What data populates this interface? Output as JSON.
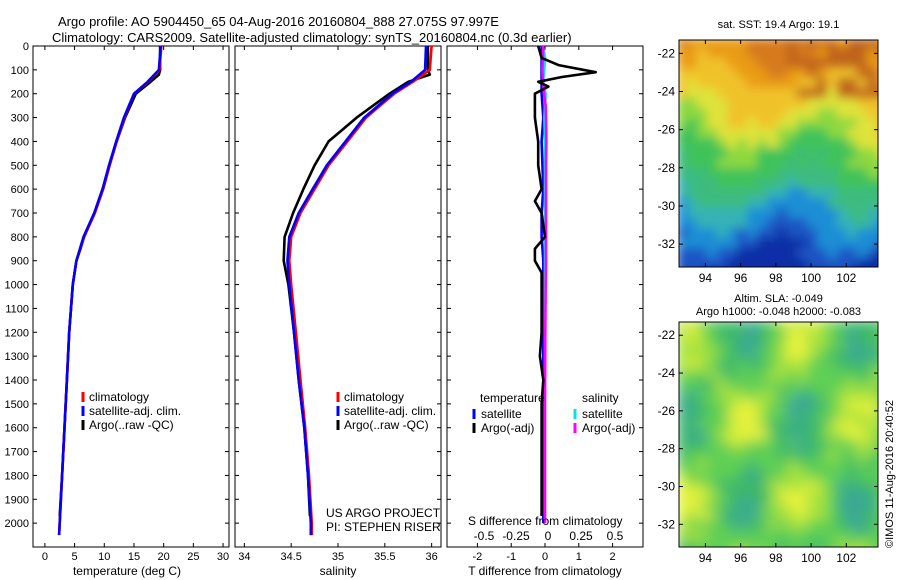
{
  "title_line1": "Argo profile: AO 5904450_65 04-Aug-2016 20160804_888 27.075S 97.997E",
  "title_line2": "Climatology: CARS2009. Satellite-adjusted climatology: synTS_20160804.nc (0.3d earlier)",
  "stamp": "©IMOS 11-Aug-2016 20:40:52",
  "colors": {
    "climatology": "#ff0000",
    "satellite": "#0000ff",
    "argo": "#000000",
    "sal_satellite": "#00e5e5",
    "sal_argo": "#ff00ff"
  },
  "chart_data": [
    {
      "type": "line",
      "id": "temperature",
      "xlabel": "temperature (deg C)",
      "xlim": [
        -2,
        31
      ],
      "xticks": [
        0,
        5,
        10,
        15,
        20,
        25,
        30
      ],
      "ylim": [
        2100,
        0
      ],
      "yticks": [
        0,
        100,
        200,
        300,
        400,
        500,
        600,
        700,
        800,
        900,
        1000,
        1100,
        1200,
        1300,
        1400,
        1500,
        1600,
        1700,
        1800,
        1900,
        2000
      ],
      "legend": [
        "climatology",
        "satellite-adj. clim.",
        "Argo(..raw -QC)"
      ],
      "series": [
        {
          "name": "climatology",
          "depth": [
            0,
            100,
            150,
            200,
            300,
            400,
            500,
            600,
            700,
            800,
            900,
            1000,
            1200,
            1400,
            1600,
            1800,
            2000,
            2050
          ],
          "values": [
            19.6,
            19.3,
            17.4,
            15.0,
            13.4,
            12.1,
            10.9,
            9.8,
            8.4,
            6.6,
            5.3,
            4.7,
            4.1,
            3.7,
            3.3,
            2.9,
            2.5,
            2.4
          ]
        },
        {
          "name": "satellite-adj. clim.",
          "depth": [
            0,
            100,
            150,
            200,
            300,
            400,
            500,
            600,
            700,
            800,
            900,
            1000,
            1200,
            1400,
            1600,
            1800,
            2000,
            2050
          ],
          "values": [
            19.5,
            19.2,
            17.3,
            15.0,
            13.3,
            12.0,
            10.8,
            9.7,
            8.3,
            6.5,
            5.3,
            4.7,
            4.1,
            3.7,
            3.3,
            2.9,
            2.5,
            2.4
          ]
        },
        {
          "name": "Argo(..raw -QC)",
          "depth": [
            0,
            100,
            120,
            150,
            200,
            300,
            400,
            500,
            600,
            700,
            800,
            850,
            900,
            1000,
            1200,
            1400,
            1600,
            1800,
            1970
          ],
          "values": [
            19.4,
            19.4,
            19.2,
            17.8,
            15.3,
            13.5,
            12.1,
            10.9,
            9.8,
            8.4,
            6.6,
            6.0,
            5.3,
            4.7,
            4.1,
            3.7,
            3.3,
            2.9,
            2.5
          ]
        }
      ]
    },
    {
      "type": "line",
      "id": "salinity",
      "xlabel": "salinity",
      "xlim": [
        33.9,
        36.1
      ],
      "xticks": [
        34,
        34.5,
        35,
        35.5,
        36
      ],
      "xticklabels": [
        "34",
        "34.5",
        "35",
        "35.5",
        "36"
      ],
      "ylim": [
        2100,
        0
      ],
      "legend": [
        "climatology",
        "satellite-adj. clim.",
        "Argo(..raw -QC)"
      ],
      "annotation": [
        "US ARGO PROJECT",
        "PI: STEPHEN RISER"
      ],
      "series": [
        {
          "name": "climatology",
          "depth": [
            0,
            100,
            150,
            200,
            250,
            300,
            400,
            500,
            600,
            700,
            800,
            900,
            1000,
            1200,
            1400,
            1600,
            1800,
            2000,
            2050
          ],
          "values": [
            36.0,
            35.98,
            35.8,
            35.6,
            35.45,
            35.3,
            35.1,
            34.9,
            34.75,
            34.6,
            34.5,
            34.48,
            34.5,
            34.55,
            34.6,
            34.65,
            34.69,
            34.72,
            34.72
          ]
        },
        {
          "name": "satellite-adj. clim.",
          "depth": [
            0,
            100,
            150,
            200,
            250,
            300,
            400,
            500,
            600,
            700,
            800,
            900,
            1000,
            1200,
            1400,
            1600,
            1800,
            2000,
            2050
          ],
          "values": [
            35.94,
            35.93,
            35.78,
            35.58,
            35.43,
            35.28,
            35.08,
            34.88,
            34.73,
            34.58,
            34.48,
            34.46,
            34.48,
            34.53,
            34.58,
            34.64,
            34.68,
            34.71,
            34.71
          ]
        },
        {
          "name": "Argo(..raw -QC)",
          "depth": [
            0,
            100,
            120,
            150,
            200,
            300,
            350,
            400,
            500,
            600,
            700,
            800,
            900,
            1000,
            1200,
            1400,
            1600,
            1800,
            1970
          ],
          "values": [
            35.96,
            35.96,
            35.98,
            35.75,
            35.55,
            35.2,
            35.05,
            34.9,
            34.75,
            34.63,
            34.52,
            34.43,
            34.42,
            34.47,
            34.53,
            34.58,
            34.64,
            34.68,
            34.7
          ]
        }
      ]
    },
    {
      "type": "line",
      "id": "differences",
      "xlabel": "T difference from climatology",
      "xlim": [
        -2.9,
        2.9
      ],
      "xticks": [
        -2,
        -1,
        0,
        1,
        2
      ],
      "top_label": "S difference from climatology",
      "top_ticks": [
        "-0.5",
        "-0.25",
        "0",
        "0.25",
        "0.5"
      ],
      "ylim": [
        2100,
        0
      ],
      "legend_headers": [
        "temperature",
        "salinity"
      ],
      "legend": [
        "satellite",
        "Argo(-adj)",
        "satellite",
        "Argo(-adj)"
      ],
      "series": [
        {
          "name": "satellite",
          "group": "temperature",
          "depth": [
            0,
            100,
            200,
            300,
            400,
            600,
            700,
            800,
            900,
            1000,
            1200,
            1500,
            2000
          ],
          "values": [
            -0.1,
            -0.1,
            -0.1,
            -0.05,
            -0.1,
            -0.05,
            -0.1,
            -0.1,
            -0.05,
            -0.05,
            -0.05,
            -0.05,
            -0.05
          ]
        },
        {
          "name": "Argo(-adj)",
          "group": "temperature",
          "depth": [
            0,
            50,
            80,
            110,
            130,
            150,
            170,
            200,
            300,
            400,
            500,
            600,
            650,
            700,
            800,
            850,
            900,
            950,
            1000,
            1100,
            1200,
            1300,
            1400,
            1500,
            1700,
            1970
          ],
          "values": [
            -0.2,
            -0.1,
            0.4,
            1.5,
            0.5,
            -0.2,
            0.1,
            -0.3,
            -0.3,
            -0.2,
            -0.2,
            -0.1,
            -0.3,
            -0.1,
            0.0,
            -0.3,
            -0.3,
            -0.1,
            -0.1,
            -0.1,
            -0.1,
            -0.15,
            -0.05,
            -0.1,
            -0.1,
            -0.1
          ]
        },
        {
          "name": "satellite",
          "group": "salinity",
          "depth": [
            0,
            50,
            100,
            150,
            200,
            300,
            400,
            500,
            700,
            900,
            1200,
            1500,
            2000
          ],
          "values": [
            -0.06,
            0.0,
            -0.02,
            -0.06,
            0.02,
            -0.02,
            0.0,
            0.0,
            0.0,
            0.0,
            0.0,
            0.0,
            0.0
          ]
        },
        {
          "name": "Argo(-adj)",
          "group": "salinity",
          "depth": [
            0,
            100,
            150,
            200,
            250,
            300,
            400,
            500,
            700,
            900,
            1000,
            1200,
            1500,
            2000
          ],
          "values": [
            -0.05,
            -0.08,
            -0.06,
            -0.03,
            0.02,
            0.03,
            0.04,
            0.03,
            0.03,
            0.03,
            0.02,
            0.01,
            0.0,
            0.0
          ]
        }
      ]
    },
    {
      "type": "heatmap",
      "id": "sst",
      "title": "sat. SST: 19.4  Argo: 19.1",
      "xlim": [
        92.5,
        103.8
      ],
      "ylim": [
        -33.2,
        -21.3
      ],
      "xticks": [
        94,
        96,
        98,
        100,
        102
      ],
      "yticks": [
        -22,
        -24,
        -26,
        -28,
        -30,
        -32
      ],
      "argo_position": [
        97.997,
        -27.075
      ]
    },
    {
      "type": "heatmap",
      "id": "sla",
      "title_line1": "Altim. SLA: -0.049",
      "title_line2": "Argo h1000: -0.048  h2000: -0.083",
      "xlim": [
        92.5,
        103.8
      ],
      "ylim": [
        -33.2,
        -21.3
      ],
      "xticks": [
        94,
        96,
        98,
        100,
        102
      ],
      "yticks": [
        -22,
        -24,
        -26,
        -28,
        -30,
        -32
      ],
      "argo_position": [
        97.997,
        -27.075
      ]
    }
  ]
}
